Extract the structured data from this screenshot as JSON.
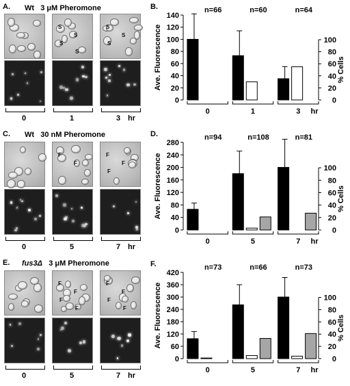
{
  "figure": {
    "rows": [
      {
        "letter": "A.",
        "title_strain": "Wt",
        "title_conc": "3 μM Pheromone",
        "time_labels": [
          "0",
          "1",
          "3"
        ],
        "unit": "hr",
        "dic_marks": [
          [],
          [
            "S",
            "S",
            "S",
            "S"
          ],
          [
            "S",
            "S",
            "S"
          ]
        ]
      },
      {
        "letter": "C.",
        "title_strain": "Wt",
        "title_conc": "30 nM Pheromone",
        "time_labels": [
          "0",
          "5",
          "7"
        ],
        "unit": "hr",
        "dic_marks": [
          [],
          [
            "F",
            "F"
          ],
          [
            "F",
            "F",
            "F"
          ]
        ]
      },
      {
        "letter": "E.",
        "title_strain": "fus3Δ",
        "title_conc": "3 μM Pheromone",
        "time_labels": [
          "0",
          "5",
          "7"
        ],
        "unit": "hr",
        "dic_marks": [
          [],
          [
            "F",
            "F",
            "F",
            "F"
          ],
          [
            "F",
            "F",
            "F",
            "F"
          ]
        ]
      }
    ]
  },
  "chart_data": [
    {
      "letter": "B.",
      "type": "bar",
      "ylabel": "Ave. Fluorescence",
      "y2label": "% Cells",
      "ylim": [
        0,
        140
      ],
      "yticks": [
        0,
        20,
        40,
        60,
        80,
        100,
        120,
        140
      ],
      "y2ticks": [
        0,
        20,
        40,
        60,
        80,
        100
      ],
      "categories": [
        "0",
        "1",
        "3"
      ],
      "unit": "hr",
      "n_labels": [
        "n=66",
        "n=60",
        "n=64"
      ],
      "series": [
        {
          "values": [
            100,
            73,
            35
          ],
          "errors": [
            42,
            41,
            20
          ],
          "color": "#000000",
          "axis": "left"
        },
        {
          "values": [
            0,
            30,
            55
          ],
          "color": "#ffffff",
          "axis": "right"
        }
      ]
    },
    {
      "letter": "D.",
      "type": "bar",
      "ylabel": "Ave. Fluorescence",
      "y2label": "% Cells",
      "ylim": [
        0,
        280
      ],
      "yticks": [
        0,
        40,
        80,
        120,
        160,
        200,
        240,
        280
      ],
      "y2ticks": [
        0,
        20,
        40,
        60,
        80,
        100
      ],
      "categories": [
        "0",
        "5",
        "7"
      ],
      "unit": "hr",
      "n_labels": [
        "n=94",
        "n=108",
        "n=81"
      ],
      "series": [
        {
          "values": [
            66,
            180,
            200
          ],
          "errors": [
            20,
            72,
            90
          ],
          "color": "#000000",
          "axis": "left"
        },
        {
          "values": [
            0,
            3,
            0
          ],
          "color": "#ffffff",
          "axis": "right"
        },
        {
          "values": [
            0,
            21,
            27
          ],
          "color": "#a6a6a6",
          "axis": "right"
        }
      ]
    },
    {
      "letter": "F.",
      "type": "bar",
      "ylabel": "Ave. Fluorescence",
      "y2label": "% Cells",
      "ylim": [
        0,
        420
      ],
      "yticks": [
        0,
        60,
        120,
        180,
        240,
        300,
        360,
        420
      ],
      "y2ticks": [
        0,
        20,
        40,
        60,
        80,
        100
      ],
      "categories": [
        "0",
        "5",
        "7"
      ],
      "unit": "hr",
      "n_labels": [
        "n=73",
        "n=66",
        "n=73"
      ],
      "series": [
        {
          "values": [
            97,
            262,
            300
          ],
          "errors": [
            35,
            98,
            95
          ],
          "color": "#000000",
          "axis": "left"
        },
        {
          "values": [
            1,
            5,
            4
          ],
          "color": "#ffffff",
          "axis": "right"
        },
        {
          "values": [
            0,
            33,
            41
          ],
          "color": "#a6a6a6",
          "axis": "right"
        }
      ]
    }
  ]
}
